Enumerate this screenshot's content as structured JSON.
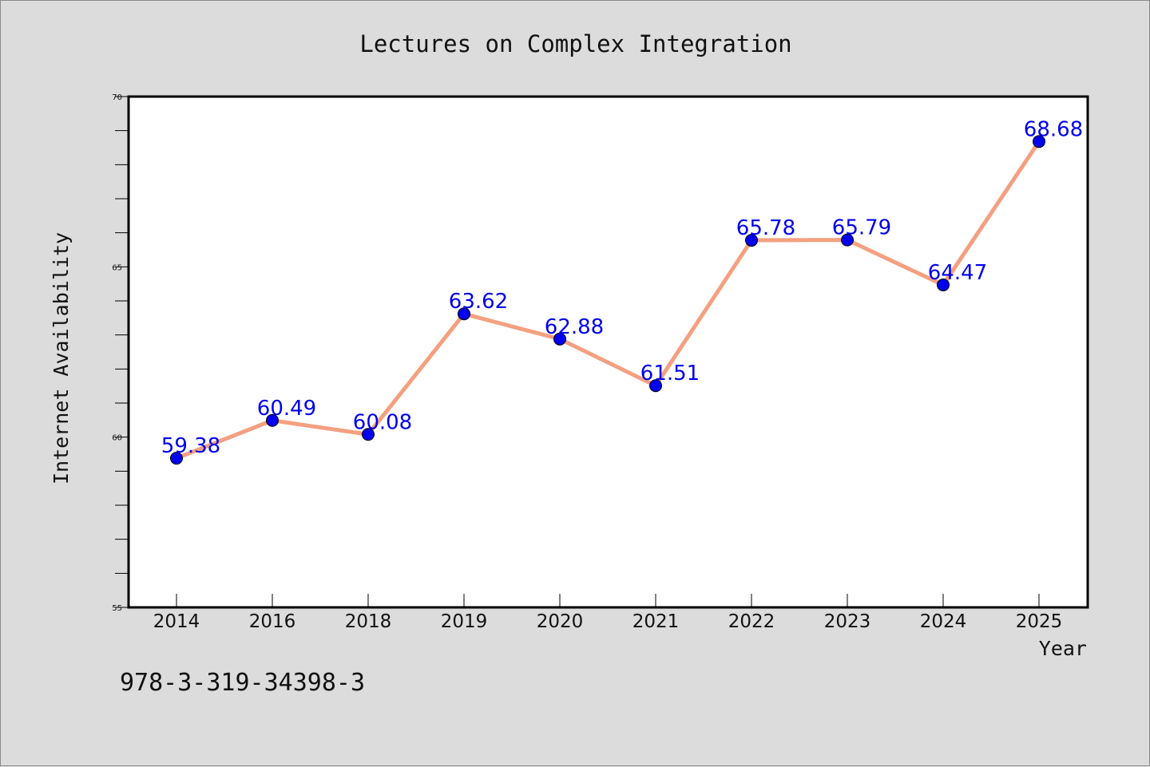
{
  "chart_data": {
    "type": "line",
    "title": "Lectures on Complex Integration",
    "xlabel": "Year",
    "ylabel": "Internet Availability",
    "categories": [
      "2014",
      "2016",
      "2018",
      "2019",
      "2020",
      "2021",
      "2022",
      "2023",
      "2024",
      "2025"
    ],
    "series": [
      {
        "values": [
          59.38,
          60.49,
          60.08,
          63.62,
          62.88,
          61.51,
          65.78,
          65.79,
          64.47,
          68.68
        ]
      }
    ],
    "data_labels": [
      "59.38",
      "60.49",
      "60.08",
      "63.62",
      "62.88",
      "61.51",
      "65.78",
      "65.79",
      "64.47",
      "68.68"
    ],
    "ylim": [
      55,
      70
    ],
    "yticks": [
      55,
      60,
      65,
      70
    ],
    "ytick_labels": [
      "55",
      "60",
      "65",
      "70"
    ],
    "grid": false,
    "legend": "none",
    "colors": {
      "line": "#f4a080",
      "marker": "#0000ee",
      "data_label": "#0000ee",
      "background": "#dcdcdc",
      "plot_area": "#ffffff"
    }
  },
  "footer": {
    "code": "978-3-319-34398-3"
  }
}
